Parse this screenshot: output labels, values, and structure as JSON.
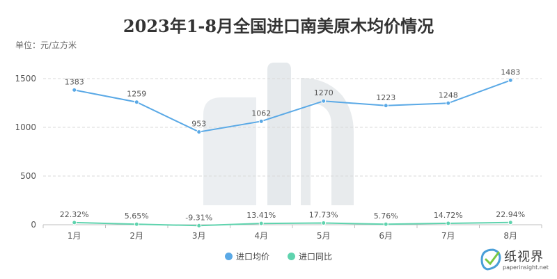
{
  "chart_data": {
    "type": "line",
    "title": "2023年1-8月全国进口南美原木均价情况",
    "unit_label": "单位：元/立方米",
    "categories": [
      "1月",
      "2月",
      "3月",
      "4月",
      "5月",
      "6月",
      "7月",
      "8月"
    ],
    "ylim": [
      0,
      1500
    ],
    "yticks": [
      0,
      500,
      1000,
      1500
    ],
    "grid": true,
    "legend_position": "bottom-center",
    "series": [
      {
        "name": "进口均价",
        "color": "#5aa9e6",
        "values": [
          1383,
          1259,
          953,
          1062,
          1270,
          1223,
          1248,
          1483
        ],
        "labels": [
          "1383",
          "1259",
          "953",
          "1062",
          "1270",
          "1223",
          "1248",
          "1483"
        ]
      },
      {
        "name": "进口同比",
        "color": "#5fd3ae",
        "values": [
          22.32,
          5.65,
          -9.31,
          13.41,
          17.73,
          5.76,
          14.72,
          22.94
        ],
        "labels": [
          "22.32%",
          "5.65%",
          "-9.31%",
          "13.41%",
          "17.73%",
          "5.76%",
          "14.72%",
          "22.94%"
        ]
      }
    ]
  },
  "watermark": {
    "text": "纸视界",
    "url": "paperinsight.net",
    "icon": "leaf-check-icon",
    "color": "#4a9fd8"
  }
}
